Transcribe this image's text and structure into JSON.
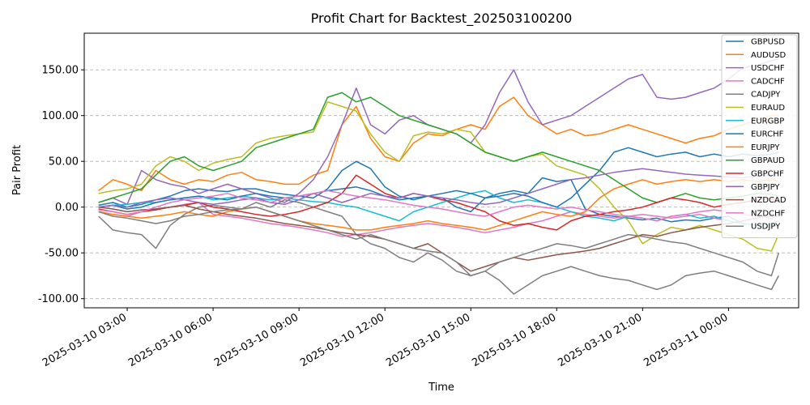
{
  "chart_data": {
    "type": "line",
    "title": "Profit Chart for Backtest_202503100200",
    "xlabel": "Time",
    "ylabel": "Pair Profit",
    "x": [
      "2025-03-10 02:00",
      "2025-03-10 02:30",
      "2025-03-10 03:00",
      "2025-03-10 03:30",
      "2025-03-10 04:00",
      "2025-03-10 04:30",
      "2025-03-10 05:00",
      "2025-03-10 05:30",
      "2025-03-10 06:00",
      "2025-03-10 06:30",
      "2025-03-10 07:00",
      "2025-03-10 07:30",
      "2025-03-10 08:00",
      "2025-03-10 08:30",
      "2025-03-10 09:00",
      "2025-03-10 09:30",
      "2025-03-10 10:00",
      "2025-03-10 10:30",
      "2025-03-10 11:00",
      "2025-03-10 11:30",
      "2025-03-10 12:00",
      "2025-03-10 12:30",
      "2025-03-10 13:00",
      "2025-03-10 13:30",
      "2025-03-10 14:00",
      "2025-03-10 14:30",
      "2025-03-10 15:00",
      "2025-03-10 15:30",
      "2025-03-10 16:00",
      "2025-03-10 16:30",
      "2025-03-10 17:00",
      "2025-03-10 17:30",
      "2025-03-10 18:00",
      "2025-03-10 18:30",
      "2025-03-10 19:00",
      "2025-03-10 19:30",
      "2025-03-10 20:00",
      "2025-03-10 20:30",
      "2025-03-10 21:00",
      "2025-03-10 21:30",
      "2025-03-10 22:00",
      "2025-03-10 22:30",
      "2025-03-10 23:00",
      "2025-03-10 23:30",
      "2025-03-11 00:00",
      "2025-03-11 00:30",
      "2025-03-11 01:00",
      "2025-03-11 01:30",
      "2025-03-11 01:45"
    ],
    "x_ticks": [
      "2025-03-10 03:00",
      "2025-03-10 06:00",
      "2025-03-10 09:00",
      "2025-03-10 12:00",
      "2025-03-10 15:00",
      "2025-03-10 18:00",
      "2025-03-10 21:00",
      "2025-03-11 00:00"
    ],
    "y_ticks": [
      "-100.00",
      "-50.00",
      "0.00",
      "50.00",
      "100.00",
      "150.00"
    ],
    "ylim": [
      -110,
      190
    ],
    "grid": "horizontal dashed",
    "legend_position": "top-right",
    "series": [
      {
        "name": "GBPUSD",
        "color": "#1f77b4",
        "values": [
          2,
          5,
          0,
          3,
          8,
          12,
          18,
          20,
          18,
          17,
          20,
          20,
          16,
          14,
          12,
          10,
          20,
          40,
          50,
          42,
          22,
          12,
          8,
          12,
          10,
          0,
          -5,
          10,
          15,
          18,
          15,
          32,
          28,
          30,
          -2,
          -8,
          -10,
          -12,
          -14,
          -12,
          -16,
          -14,
          -15,
          -12,
          -10,
          -18,
          -20,
          -22,
          -20
        ]
      },
      {
        "name": "AUDUSD",
        "color": "#ff7f0e",
        "values": [
          18,
          30,
          25,
          18,
          40,
          30,
          25,
          30,
          28,
          35,
          38,
          30,
          28,
          25,
          25,
          35,
          40,
          90,
          110,
          75,
          55,
          50,
          70,
          80,
          78,
          85,
          90,
          85,
          110,
          120,
          100,
          90,
          80,
          85,
          78,
          80,
          85,
          90,
          85,
          80,
          75,
          70,
          75,
          78,
          85,
          90,
          95,
          100,
          100
        ]
      },
      {
        "name": "USDCHF",
        "color": "#9467bd",
        "values": [
          5,
          10,
          3,
          40,
          30,
          25,
          22,
          15,
          20,
          25,
          20,
          15,
          10,
          5,
          15,
          30,
          55,
          90,
          130,
          90,
          80,
          95,
          100,
          90,
          85,
          80,
          70,
          90,
          125,
          150,
          115,
          90,
          95,
          100,
          110,
          120,
          130,
          140,
          145,
          120,
          118,
          120,
          125,
          130,
          140,
          152,
          155,
          160,
          162
        ]
      },
      {
        "name": "CADCHF",
        "color": "#e377c2",
        "values": [
          -5,
          -8,
          -10,
          -5,
          -2,
          0,
          3,
          5,
          -8,
          -10,
          -12,
          -15,
          -18,
          -20,
          -22,
          -25,
          -28,
          -32,
          -30,
          -28,
          -25,
          -22,
          -20,
          -18,
          -20,
          -22,
          -25,
          -28,
          -25,
          -22,
          -18,
          -15,
          -10,
          -5,
          -8,
          -10,
          -12,
          -10,
          -8,
          -10,
          -12,
          -10,
          -8,
          -12,
          -15,
          -18,
          -20,
          -22,
          -20
        ]
      },
      {
        "name": "CADJPY",
        "color": "#7f7f7f",
        "values": [
          -10,
          -25,
          -28,
          -30,
          -45,
          -20,
          -8,
          0,
          2,
          0,
          -2,
          5,
          0,
          8,
          5,
          0,
          -5,
          -10,
          -30,
          -40,
          -45,
          -55,
          -60,
          -50,
          -58,
          -70,
          -75,
          -70,
          -80,
          -95,
          -85,
          -75,
          -70,
          -65,
          -70,
          -75,
          -78,
          -80,
          -85,
          -90,
          -85,
          -75,
          -72,
          -70,
          -75,
          -80,
          -85,
          -90,
          -75
        ]
      },
      {
        "name": "EURAUD",
        "color": "#bcbd22",
        "values": [
          15,
          18,
          20,
          25,
          45,
          55,
          50,
          40,
          48,
          52,
          55,
          70,
          75,
          78,
          80,
          82,
          115,
          110,
          105,
          80,
          60,
          50,
          78,
          82,
          80,
          85,
          82,
          60,
          55,
          50,
          55,
          58,
          45,
          40,
          35,
          20,
          0,
          -15,
          -40,
          -30,
          -22,
          -25,
          -20,
          -25,
          -30,
          -35,
          -45,
          -48,
          -30
        ]
      },
      {
        "name": "EURGBP",
        "color": "#17becf",
        "values": [
          0,
          2,
          3,
          5,
          5,
          8,
          10,
          12,
          8,
          10,
          12,
          10,
          8,
          10,
          8,
          6,
          5,
          2,
          0,
          -5,
          -10,
          -15,
          -5,
          0,
          5,
          10,
          15,
          18,
          10,
          5,
          8,
          5,
          0,
          -5,
          -10,
          -12,
          -15,
          -10,
          -12,
          -15,
          -10,
          -8,
          -12,
          -10,
          -15,
          -18,
          -20,
          -18,
          -15
        ]
      },
      {
        "name": "EURCHF",
        "color": "#1f77b4",
        "values": [
          0,
          2,
          -2,
          0,
          5,
          8,
          10,
          12,
          10,
          8,
          12,
          15,
          12,
          10,
          12,
          15,
          18,
          20,
          22,
          18,
          12,
          8,
          10,
          12,
          15,
          18,
          15,
          10,
          12,
          15,
          12,
          5,
          0,
          10,
          25,
          40,
          60,
          65,
          60,
          55,
          58,
          60,
          55,
          58,
          55,
          58,
          56,
          58,
          60
        ]
      },
      {
        "name": "EURJPY",
        "color": "#ff7f0e",
        "values": [
          -5,
          -8,
          -10,
          -12,
          -10,
          -8,
          -5,
          -8,
          -10,
          -5,
          -2,
          0,
          -5,
          -10,
          -15,
          -18,
          -20,
          -22,
          -25,
          -25,
          -22,
          -20,
          -18,
          -15,
          -18,
          -20,
          -22,
          -25,
          -20,
          -15,
          -10,
          -5,
          -8,
          -10,
          -5,
          10,
          20,
          25,
          30,
          25,
          28,
          30,
          28,
          30,
          28,
          30,
          28,
          30,
          28
        ]
      },
      {
        "name": "GBPAUD",
        "color": "#2ca02c",
        "values": [
          5,
          10,
          15,
          20,
          35,
          50,
          55,
          45,
          40,
          45,
          50,
          65,
          70,
          75,
          80,
          85,
          120,
          125,
          115,
          120,
          110,
          100,
          95,
          90,
          85,
          80,
          70,
          60,
          55,
          50,
          55,
          60,
          55,
          50,
          45,
          40,
          30,
          20,
          10,
          5,
          10,
          15,
          10,
          8,
          10,
          12,
          15,
          14,
          12
        ]
      },
      {
        "name": "GBPCHF",
        "color": "#d62728",
        "values": [
          -2,
          -5,
          -8,
          -5,
          -3,
          0,
          2,
          5,
          0,
          -2,
          -5,
          -8,
          -10,
          -8,
          -5,
          0,
          5,
          15,
          35,
          25,
          15,
          10,
          15,
          12,
          8,
          5,
          0,
          -5,
          -15,
          -20,
          -18,
          -22,
          -25,
          -15,
          -10,
          -8,
          -5,
          -3,
          0,
          5,
          10,
          8,
          5,
          0,
          3,
          5,
          8,
          10,
          5
        ]
      },
      {
        "name": "GBPJPY",
        "color": "#9467bd",
        "values": [
          0,
          2,
          0,
          5,
          8,
          10,
          8,
          5,
          3,
          5,
          8,
          10,
          5,
          3,
          8,
          15,
          10,
          5,
          10,
          15,
          12,
          10,
          15,
          12,
          10,
          8,
          5,
          3,
          5,
          10,
          15,
          20,
          25,
          30,
          32,
          35,
          38,
          40,
          42,
          40,
          38,
          36,
          35,
          34,
          33,
          32,
          34,
          35,
          36
        ]
      },
      {
        "name": "NZDCAD",
        "color": "#8c564b",
        "values": [
          0,
          -2,
          -5,
          -3,
          -2,
          0,
          2,
          -2,
          -5,
          -8,
          -10,
          -12,
          -15,
          -18,
          -20,
          -22,
          -25,
          -28,
          -30,
          -32,
          -35,
          -40,
          -45,
          -40,
          -50,
          -60,
          -70,
          -65,
          -60,
          -55,
          -58,
          -55,
          -52,
          -50,
          -48,
          -45,
          -40,
          -35,
          -30,
          -32,
          -28,
          -25,
          -22,
          -20,
          -18,
          -15,
          -12,
          -10,
          -8
        ]
      },
      {
        "name": "NZDCHF",
        "color": "#e377c2",
        "values": [
          -3,
          -5,
          -8,
          -5,
          0,
          5,
          8,
          10,
          12,
          15,
          10,
          8,
          5,
          10,
          12,
          15,
          18,
          15,
          12,
          10,
          8,
          5,
          2,
          0,
          -2,
          -5,
          -8,
          -10,
          -5,
          0,
          2,
          0,
          -2,
          0,
          -3,
          -5,
          -8,
          -10,
          -12,
          -15,
          -10,
          -8,
          -5,
          -3,
          -5,
          -8,
          -10,
          -12,
          -10
        ]
      },
      {
        "name": "USDJPY",
        "color": "#7f7f7f",
        "values": [
          -5,
          -10,
          -12,
          -15,
          -18,
          -15,
          -10,
          -8,
          -5,
          -3,
          -2,
          0,
          -5,
          -10,
          -15,
          -20,
          -25,
          -30,
          -35,
          -30,
          -35,
          -40,
          -45,
          -48,
          -50,
          -60,
          -75,
          -70,
          -60,
          -55,
          -50,
          -45,
          -40,
          -42,
          -45,
          -40,
          -35,
          -30,
          -32,
          -35,
          -38,
          -40,
          -45,
          -50,
          -55,
          -60,
          -70,
          -75,
          -50
        ]
      }
    ]
  }
}
